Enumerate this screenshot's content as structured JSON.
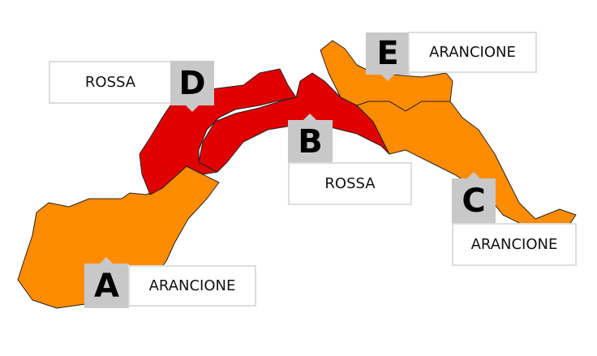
{
  "colors": {
    "rossa": "#e00000",
    "arancione": "#ff8c00",
    "border": "#222222",
    "label_bg": "#c8c8c8"
  },
  "zones": [
    {
      "letter": "A",
      "level": "ARANCIONE"
    },
    {
      "letter": "B",
      "level": "ROSSA"
    },
    {
      "letter": "C",
      "level": "ARANCIONE"
    },
    {
      "letter": "D",
      "level": "ROSSA"
    },
    {
      "letter": "E",
      "level": "ARANCIONE"
    }
  ]
}
